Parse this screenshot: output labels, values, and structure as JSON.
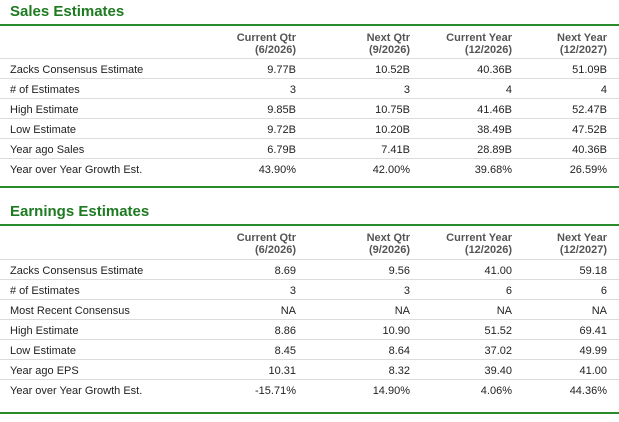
{
  "sales": {
    "title": "Sales Estimates",
    "columns": [
      {
        "label": "Current Qtr",
        "sub": "(6/2026)"
      },
      {
        "label": "Next Qtr",
        "sub": "(9/2026)"
      },
      {
        "label": "Current Year",
        "sub": "(12/2026)"
      },
      {
        "label": "Next Year",
        "sub": "(12/2027)"
      }
    ],
    "rows": [
      {
        "label": "Zacks Consensus Estimate",
        "values": [
          "9.77B",
          "10.52B",
          "40.36B",
          "51.09B"
        ]
      },
      {
        "label": "# of Estimates",
        "values": [
          "3",
          "3",
          "4",
          "4"
        ]
      },
      {
        "label": "High Estimate",
        "values": [
          "9.85B",
          "10.75B",
          "41.46B",
          "52.47B"
        ]
      },
      {
        "label": "Low Estimate",
        "values": [
          "9.72B",
          "10.20B",
          "38.49B",
          "47.52B"
        ]
      },
      {
        "label": "Year ago Sales",
        "values": [
          "6.79B",
          "7.41B",
          "28.89B",
          "40.36B"
        ]
      },
      {
        "label": "Year over Year Growth Est.",
        "values": [
          "43.90%",
          "42.00%",
          "39.68%",
          "26.59%"
        ]
      }
    ]
  },
  "earnings": {
    "title": "Earnings Estimates",
    "columns": [
      {
        "label": "Current Qtr",
        "sub": "(6/2026)"
      },
      {
        "label": "Next Qtr",
        "sub": "(9/2026)"
      },
      {
        "label": "Current Year",
        "sub": "(12/2026)"
      },
      {
        "label": "Next Year",
        "sub": "(12/2027)"
      }
    ],
    "rows": [
      {
        "label": "Zacks Consensus Estimate",
        "values": [
          "8.69",
          "9.56",
          "41.00",
          "59.18"
        ]
      },
      {
        "label": "# of Estimates",
        "values": [
          "3",
          "3",
          "6",
          "6"
        ]
      },
      {
        "label": "Most Recent Consensus",
        "values": [
          "NA",
          "NA",
          "NA",
          "NA"
        ]
      },
      {
        "label": "High Estimate",
        "values": [
          "8.86",
          "10.90",
          "51.52",
          "69.41"
        ]
      },
      {
        "label": "Low Estimate",
        "values": [
          "8.45",
          "8.64",
          "37.02",
          "49.99"
        ]
      },
      {
        "label": "Year ago EPS",
        "values": [
          "10.31",
          "8.32",
          "39.40",
          "41.00"
        ]
      },
      {
        "label": "Year over Year Growth Est.",
        "values": [
          "-15.71%",
          "14.90%",
          "4.06%",
          "44.36%"
        ]
      }
    ]
  },
  "colors": {
    "accent": "#1e7b22",
    "rule": "#2a8b2c",
    "row_border": "#dcdcdc"
  }
}
